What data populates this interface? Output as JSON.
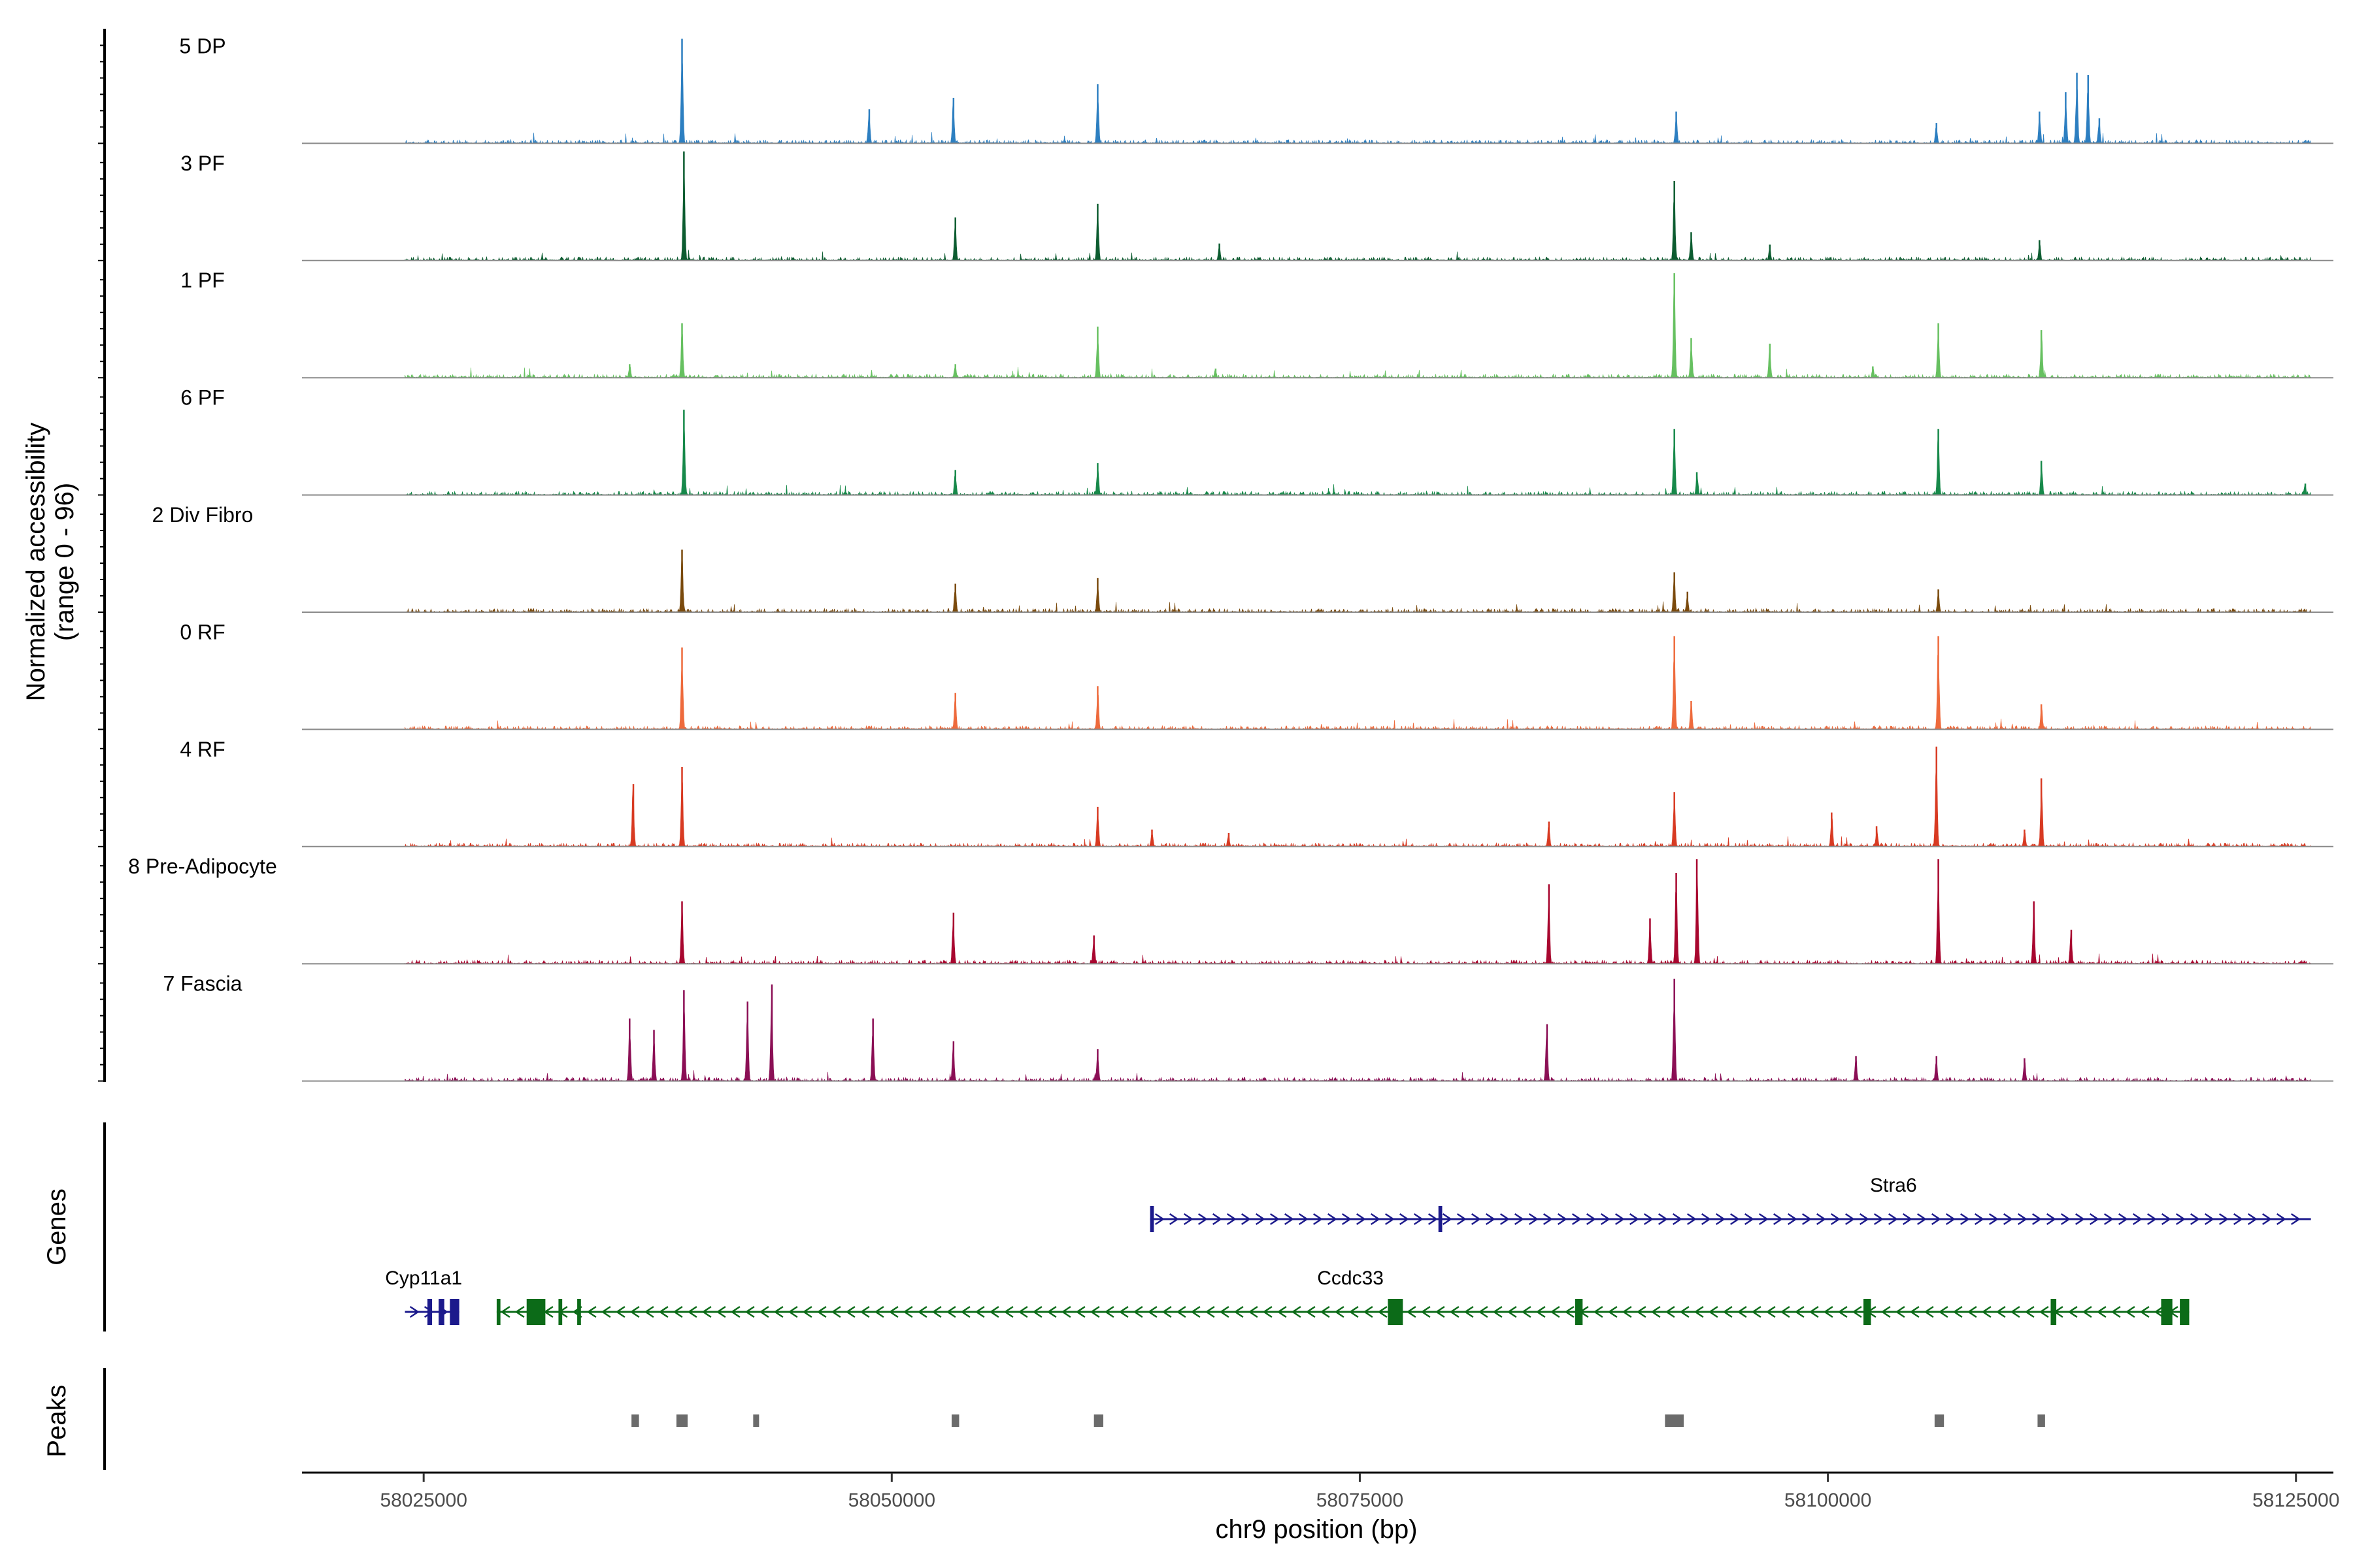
{
  "chart_data": {
    "type": "area",
    "title": "",
    "region": "chr9",
    "xlabel": "chr9 position (bp)",
    "ylabel": "Normalized accessibility",
    "ylabel_sub": "(range 0 - 96)",
    "y_range": [
      0,
      96
    ],
    "xlim": [
      58018500,
      58127000
    ],
    "x_ticks": [
      58025000,
      58050000,
      58075000,
      58100000,
      58125000
    ],
    "x_tick_labels": [
      "58025000",
      "58050000",
      "58075000",
      "58100000",
      "58125000"
    ],
    "track_start": 58024000,
    "track_end": 58125800,
    "panel_titles": {
      "genes": "Genes",
      "peaks": "Peaks"
    },
    "series": [
      {
        "name": "5 DP",
        "color": "#2d7fc1",
        "peaks": [
          [
            58038800,
            92
          ],
          [
            58038800,
            55
          ],
          [
            58048800,
            30
          ],
          [
            58053300,
            40
          ],
          [
            58061000,
            52
          ],
          [
            58091900,
            28
          ],
          [
            58105800,
            18
          ],
          [
            58111300,
            28
          ],
          [
            58112700,
            45
          ],
          [
            58113300,
            62
          ],
          [
            58113900,
            60
          ],
          [
            58114500,
            22
          ]
        ]
      },
      {
        "name": "3 PF",
        "color": "#0c5c30",
        "peaks": [
          [
            58038900,
            96
          ],
          [
            58053400,
            38
          ],
          [
            58061000,
            50
          ],
          [
            58067500,
            15
          ],
          [
            58091800,
            70
          ],
          [
            58092700,
            25
          ],
          [
            58096900,
            14
          ],
          [
            58111300,
            18
          ]
        ]
      },
      {
        "name": "1 PF",
        "color": "#66c060",
        "peaks": [
          [
            58038800,
            48
          ],
          [
            58036000,
            12
          ],
          [
            58053400,
            12
          ],
          [
            58061000,
            45
          ],
          [
            58067300,
            8
          ],
          [
            58091800,
            92
          ],
          [
            58092700,
            35
          ],
          [
            58096900,
            30
          ],
          [
            58102400,
            10
          ],
          [
            58105900,
            48
          ],
          [
            58111400,
            42
          ]
        ]
      },
      {
        "name": "6 PF",
        "color": "#17894a",
        "peaks": [
          [
            58038900,
            75
          ],
          [
            58053400,
            22
          ],
          [
            58061000,
            28
          ],
          [
            58091800,
            58
          ],
          [
            58093000,
            20
          ],
          [
            58105900,
            58
          ],
          [
            58111400,
            30
          ],
          [
            58125500,
            10
          ]
        ]
      },
      {
        "name": "2 Div Fibro",
        "color": "#7a4a0d",
        "peaks": [
          [
            58038800,
            55
          ],
          [
            58053400,
            25
          ],
          [
            58061000,
            30
          ],
          [
            58091800,
            35
          ],
          [
            58092500,
            18
          ],
          [
            58105900,
            20
          ]
        ]
      },
      {
        "name": "0 RF",
        "color": "#ee6a3c",
        "peaks": [
          [
            58038800,
            72
          ],
          [
            58053400,
            32
          ],
          [
            58061000,
            38
          ],
          [
            58091800,
            82
          ],
          [
            58092700,
            25
          ],
          [
            58105900,
            82
          ],
          [
            58111400,
            22
          ]
        ]
      },
      {
        "name": "4 RF",
        "color": "#d83a22",
        "peaks": [
          [
            58036200,
            55
          ],
          [
            58038800,
            70
          ],
          [
            58061000,
            35
          ],
          [
            58063900,
            15
          ],
          [
            58068000,
            12
          ],
          [
            58085100,
            22
          ],
          [
            58091800,
            48
          ],
          [
            58100200,
            30
          ],
          [
            58102600,
            18
          ],
          [
            58105800,
            88
          ],
          [
            58110500,
            15
          ],
          [
            58111400,
            60
          ]
        ]
      },
      {
        "name": "8 Pre-Adipocyte",
        "color": "#a8072f",
        "peaks": [
          [
            58038800,
            55
          ],
          [
            58053300,
            45
          ],
          [
            58060800,
            25
          ],
          [
            58085100,
            70
          ],
          [
            58090500,
            40
          ],
          [
            58091900,
            80
          ],
          [
            58093000,
            92
          ],
          [
            58105900,
            92
          ],
          [
            58111000,
            55
          ],
          [
            58113000,
            30
          ]
        ]
      },
      {
        "name": "7 Fascia",
        "color": "#8b0f55",
        "peaks": [
          [
            58036000,
            55
          ],
          [
            58037300,
            45
          ],
          [
            58038900,
            80
          ],
          [
            58042300,
            70
          ],
          [
            58043600,
            85
          ],
          [
            58049000,
            55
          ],
          [
            58053300,
            35
          ],
          [
            58061000,
            28
          ],
          [
            58085000,
            50
          ],
          [
            58091800,
            90
          ],
          [
            58101500,
            22
          ],
          [
            58105800,
            22
          ],
          [
            58110500,
            20
          ]
        ]
      }
    ],
    "genes": [
      {
        "name": "Stra6",
        "strand": "+",
        "start": 58063800,
        "end": 58125800,
        "row": 1,
        "color": "#1c1a8c",
        "exons": [
          [
            58063800,
            58064000
          ],
          [
            58079200,
            58079400
          ]
        ]
      },
      {
        "name": "Cyp11a1",
        "strand": "+",
        "start": 58024000,
        "end": 58026900,
        "row": 2,
        "color": "#1c1a8c",
        "exons": [
          [
            58025200,
            58025450
          ],
          [
            58025800,
            58026100
          ],
          [
            58026400,
            58026900
          ]
        ]
      },
      {
        "name": "Ccdc33",
        "strand": "-",
        "start": 58028900,
        "end": 58119300,
        "row": 2,
        "color": "#0c6b18",
        "exons": [
          [
            58028900,
            58029100
          ],
          [
            58030500,
            58031500
          ],
          [
            58032200,
            58032400
          ],
          [
            58033200,
            58033400
          ],
          [
            58076500,
            58077300
          ],
          [
            58086500,
            58086900
          ],
          [
            58101900,
            58102300
          ],
          [
            58111900,
            58112200
          ],
          [
            58117800,
            58118400
          ],
          [
            58118800,
            58119300
          ]
        ]
      }
    ],
    "peaks_track": [
      {
        "start": 58036100,
        "end": 58036500
      },
      {
        "start": 58038500,
        "end": 58039100
      },
      {
        "start": 58042600,
        "end": 58042900
      },
      {
        "start": 58053200,
        "end": 58053600
      },
      {
        "start": 58060800,
        "end": 58061300
      },
      {
        "start": 58091300,
        "end": 58092300
      },
      {
        "start": 58105700,
        "end": 58106200
      },
      {
        "start": 58111200,
        "end": 58111600
      }
    ]
  }
}
